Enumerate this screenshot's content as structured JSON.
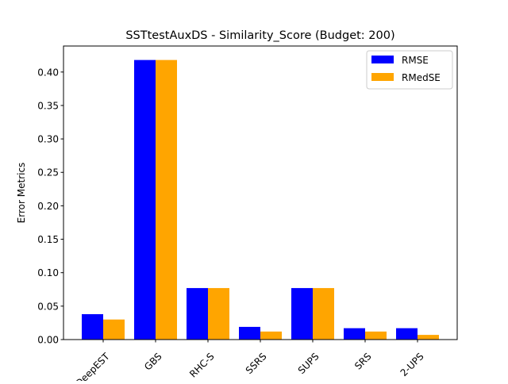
{
  "chart_data": {
    "type": "bar",
    "title": "SSTtestAuxDS - Similarity_Score (Budget: 200)",
    "xlabel": "",
    "ylabel": "Error Metrics",
    "categories": [
      "DeepEST",
      "GBS",
      "RHC-S",
      "SSRS",
      "SUPS",
      "SRS",
      "2-UPS"
    ],
    "series": [
      {
        "name": "RMSE",
        "color": "#0000ff",
        "values": [
          0.038,
          0.418,
          0.077,
          0.019,
          0.077,
          0.017,
          0.017
        ]
      },
      {
        "name": "RMedSE",
        "color": "#ffa500",
        "values": [
          0.03,
          0.418,
          0.077,
          0.012,
          0.077,
          0.012,
          0.007
        ]
      }
    ],
    "ylim": [
      0,
      0.4389
    ],
    "yticks": [
      0.0,
      0.05,
      0.1,
      0.15,
      0.2,
      0.25,
      0.3,
      0.35,
      0.4
    ],
    "ytick_labels": [
      "0.00",
      "0.05",
      "0.10",
      "0.15",
      "0.20",
      "0.25",
      "0.30",
      "0.35",
      "0.40"
    ],
    "grid": false,
    "legend_position": "upper right"
  }
}
